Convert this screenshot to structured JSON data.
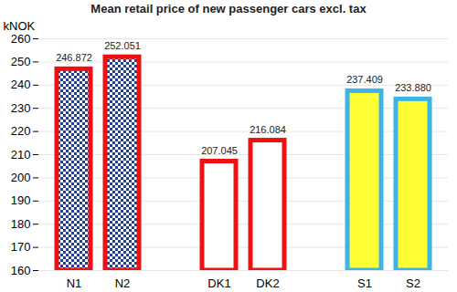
{
  "chart_data": {
    "type": "bar",
    "title": "Mean retail price of new passenger cars excl. tax",
    "y_label": "kNOK",
    "categories": [
      "N1",
      "N2",
      null,
      "DK1",
      "DK2",
      null,
      "S1",
      "S2"
    ],
    "values": [
      246.872,
      252.051,
      null,
      207.045,
      216.084,
      null,
      237.409,
      233.88
    ],
    "value_labels": [
      "246.872",
      "252.051",
      null,
      "207.045",
      "216.084",
      null,
      "237.409",
      "233.880"
    ],
    "colors": [
      "#24408e",
      "#24408e",
      null,
      "#ffffff",
      "#ffffff",
      null,
      "#ffff33",
      "#ffff33"
    ],
    "ylim": [
      160,
      260
    ],
    "yticks": [
      160,
      170,
      180,
      190,
      200,
      210,
      220,
      230,
      240,
      250,
      260
    ],
    "grid": true,
    "data_labels": true
  }
}
